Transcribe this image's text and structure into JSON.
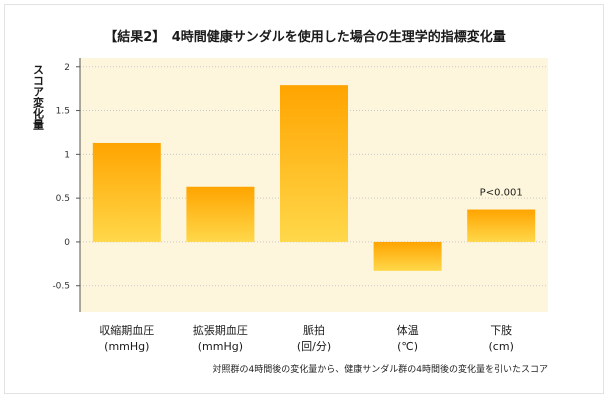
{
  "chart_data": {
    "type": "bar",
    "title": "【結果2】　4時間健康サンダルを使用した場合の生理学的指標変化量",
    "ylabel": "スコア変化量",
    "categories": [
      [
        "収縮期血圧",
        "(mmHg)"
      ],
      [
        "拡張期血圧",
        "(mmHg)"
      ],
      [
        "脈拍",
        "(回/分)"
      ],
      [
        "体温",
        "(℃)"
      ],
      [
        "下肢",
        "(cm)"
      ]
    ],
    "values": [
      1.13,
      0.63,
      1.79,
      -0.33,
      0.37
    ],
    "ylim": [
      -0.8,
      2.1
    ],
    "yticks": [
      -0.5,
      0,
      0.5,
      1,
      1.5,
      2
    ],
    "ytick_labels": [
      "-0.5",
      "0",
      "0.5",
      "1",
      "1.5",
      "2"
    ],
    "grid": true,
    "annotations": [
      {
        "category_index": 4,
        "text": "P<0.001"
      }
    ],
    "footnote": "対照群の4時間後の変化量から、健康サンダル群の4時間後の変化量を引いたスコア",
    "colors": {
      "plot_background": "#fdf6dc",
      "bar_top": "#ffa400",
      "bar_bottom": "#ffd84a",
      "grid": "#c8c8c8"
    }
  }
}
